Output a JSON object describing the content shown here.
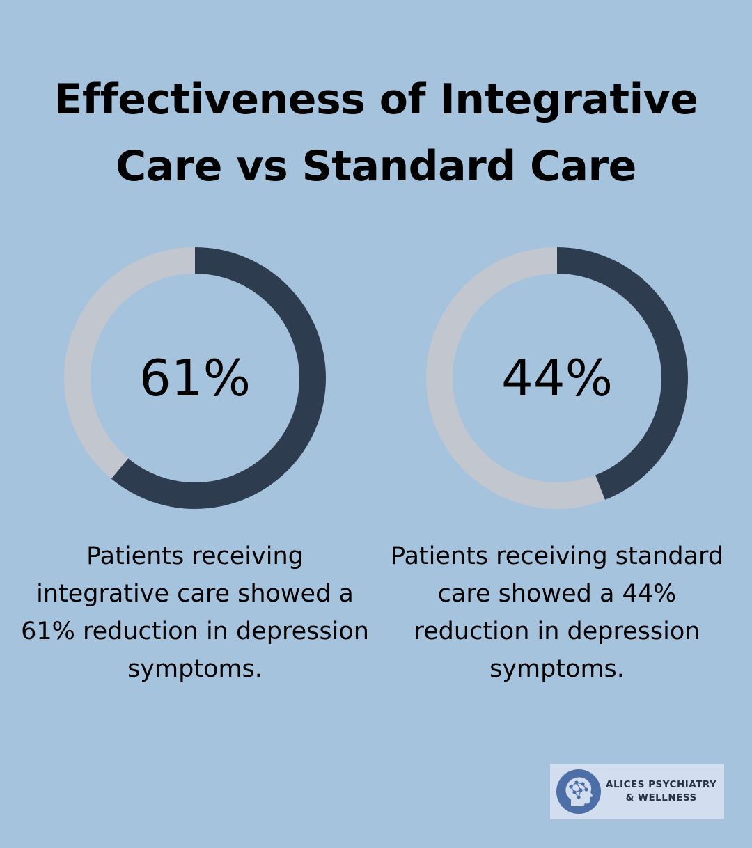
{
  "title_line1": "Effectiveness of Integrative",
  "title_line2": "Care vs Standard Care",
  "chart_data": [
    {
      "type": "pie",
      "subtype": "donut",
      "value_percent": 61,
      "label": "61%",
      "description": "Patients receiving integrative care showed a 61% reduction in depression symptoms."
    },
    {
      "type": "pie",
      "subtype": "donut",
      "value_percent": 44,
      "label": "44%",
      "description": "Patients receiving standard care showed a 44% reduction in depression symptoms."
    }
  ],
  "colors": {
    "background": "#a6c3de",
    "filled": "#2e3c50",
    "track": "#c2c6cf",
    "logo_bg": "#d2def0",
    "logo_mark": "#4c6fa8"
  },
  "logo": {
    "line1": "ALICES PSYCHIATRY",
    "line2": "& WELLNESS",
    "icon": "brain-head-icon"
  }
}
